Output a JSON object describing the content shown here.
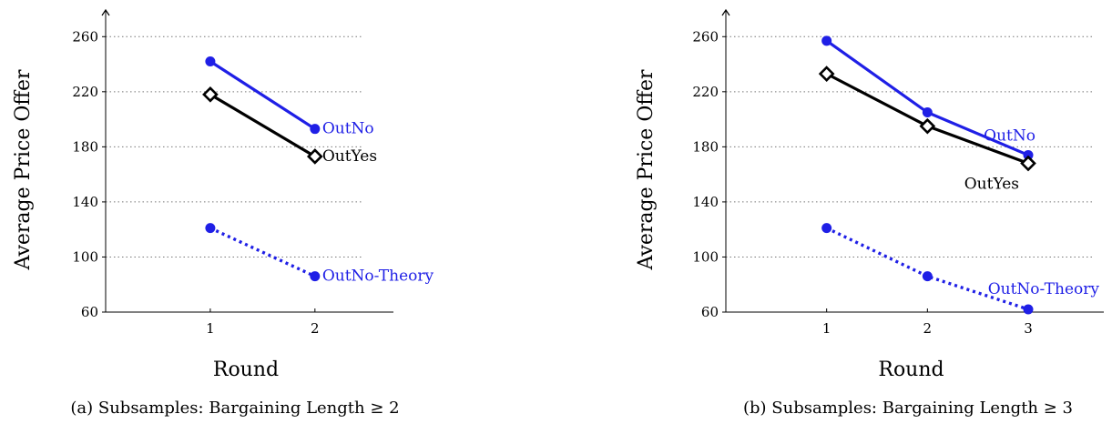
{
  "chart_data": [
    {
      "type": "line",
      "caption": "(a) Subsamples: Bargaining Length ≥ 2",
      "xlabel": "Round",
      "ylabel": "Average Price Offer",
      "x_ticks": [
        1,
        2
      ],
      "y_ticks": [
        60,
        100,
        140,
        180,
        220,
        260
      ],
      "xlim": [
        0,
        2.75
      ],
      "ylim": [
        60,
        280
      ],
      "grid": "horizontal-dotted",
      "series": [
        {
          "name": "OutNo",
          "x": [
            1,
            2
          ],
          "y": [
            242,
            193
          ],
          "color": "#1f1fe6",
          "marker": "circle",
          "line": "solid"
        },
        {
          "name": "OutYes",
          "x": [
            1,
            2
          ],
          "y": [
            218,
            173
          ],
          "color": "#000000",
          "marker": "diamond",
          "line": "solid"
        },
        {
          "name": "OutNo-Theory",
          "x": [
            1,
            2
          ],
          "y": [
            121,
            86
          ],
          "color": "#1f1fe6",
          "marker": "circle",
          "line": "dotted"
        }
      ]
    },
    {
      "type": "line",
      "caption": "(b) Subsamples: Bargaining Length ≥ 3",
      "xlabel": "Round",
      "ylabel": "Average Price Offer",
      "x_ticks": [
        1,
        2,
        3
      ],
      "y_ticks": [
        60,
        100,
        140,
        180,
        220,
        260
      ],
      "xlim": [
        0,
        3.75
      ],
      "ylim": [
        60,
        280
      ],
      "grid": "horizontal-dotted",
      "series": [
        {
          "name": "OutNo",
          "x": [
            1,
            2,
            3
          ],
          "y": [
            257,
            205,
            174
          ],
          "color": "#1f1fe6",
          "marker": "circle",
          "line": "solid"
        },
        {
          "name": "OutYes",
          "x": [
            1,
            2,
            3
          ],
          "y": [
            233,
            195,
            168
          ],
          "color": "#000000",
          "marker": "diamond",
          "line": "solid"
        },
        {
          "name": "OutNo-Theory",
          "x": [
            1,
            2,
            3
          ],
          "y": [
            121,
            86,
            62
          ],
          "color": "#1f1fe6",
          "marker": "circle",
          "line": "dotted"
        }
      ]
    }
  ]
}
